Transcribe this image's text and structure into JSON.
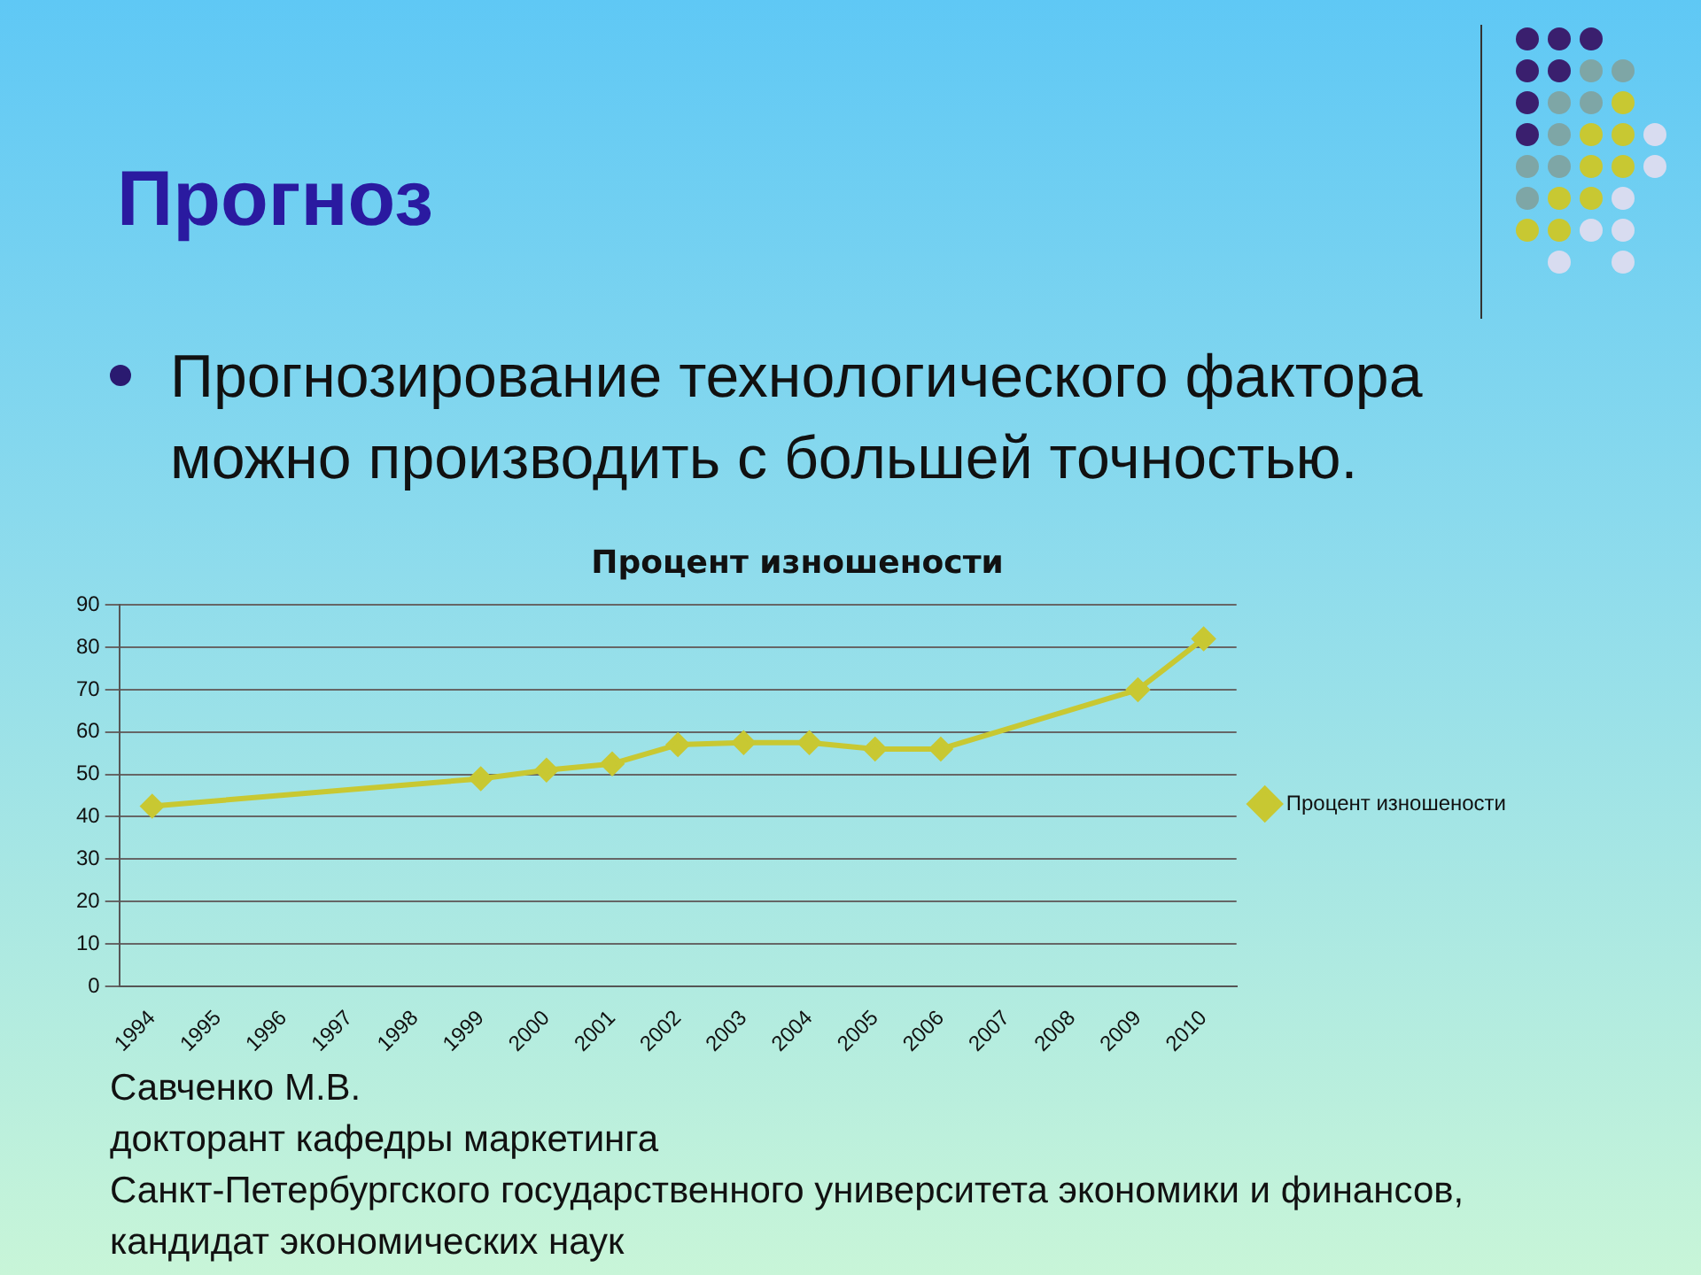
{
  "chart_data": {
    "type": "line",
    "title": "Процент изношености",
    "categories": [
      "1994",
      "1995",
      "1996",
      "1997",
      "1998",
      "1999",
      "2000",
      "2001",
      "2002",
      "2003",
      "2004",
      "2005",
      "2006",
      "2007",
      "2008",
      "2009",
      "2010"
    ],
    "series": [
      {
        "name": "Процент изношености",
        "color": "#c8c832",
        "values": [
          42.5,
          null,
          null,
          null,
          null,
          49,
          51,
          52.5,
          57,
          57.5,
          57.5,
          56,
          56,
          null,
          null,
          70,
          82
        ]
      }
    ],
    "ylim": [
      0,
      90
    ],
    "yticks": [
      0,
      10,
      20,
      30,
      40,
      50,
      60,
      70,
      80,
      90
    ],
    "grid": "y",
    "legend": "right",
    "marker": "diamond",
    "annotations": [
      "Прогноз",
      "Прогнозирование технологического фактора можно производить с большей точностью.",
      "Савченко М.В.",
      "докторант кафедры маркетинга",
      "Санкт-Петербургского государственного университета экономики и финансов,",
      "кандидат экономических наук"
    ]
  }
}
